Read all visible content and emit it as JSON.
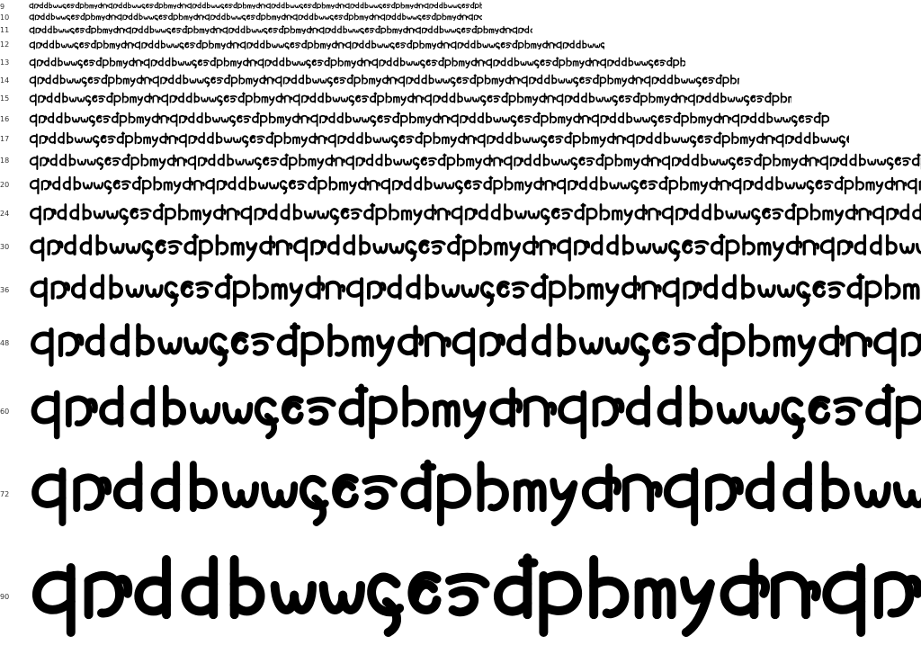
{
  "specimen": {
    "sizes": [
      "9",
      "10",
      "11",
      "12",
      "13",
      "14",
      "15",
      "16",
      "17",
      "18",
      "20",
      "24",
      "30",
      "36",
      "48",
      "60",
      "72",
      "90"
    ],
    "glyph_color": "#000000",
    "label_color": "#333333",
    "background": "#ffffff"
  }
}
